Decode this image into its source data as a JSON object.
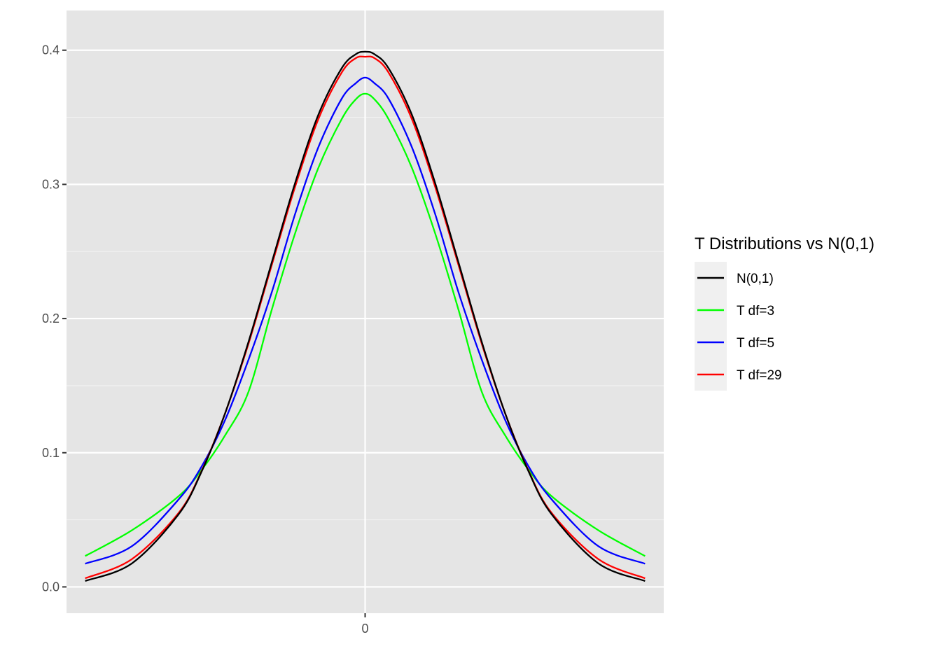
{
  "chart_data": {
    "type": "line",
    "title": "",
    "xlabel": "",
    "ylabel": "",
    "xlim": [
      -3.2,
      3.2
    ],
    "ylim": [
      -0.0196,
      0.4296
    ],
    "x_ticks": [
      0
    ],
    "x_tick_labels": [
      "0"
    ],
    "y_ticks": [
      0.0,
      0.1,
      0.2,
      0.3,
      0.4
    ],
    "y_tick_labels": [
      "0.0",
      "0.1",
      "0.2",
      "0.3",
      "0.4"
    ],
    "grid": true,
    "background": "#e5e5e5",
    "legend": {
      "title": "T Distributions vs N(0,1)",
      "placement": "right"
    },
    "x": [
      -3.0,
      -2.5,
      -2.0,
      -1.75,
      -1.5,
      -1.25,
      -1.0,
      -0.75,
      -0.5,
      -0.25,
      -0.1,
      0.0,
      0.1,
      0.25,
      0.5,
      0.75,
      1.0,
      1.25,
      1.5,
      1.75,
      2.0,
      2.5,
      3.0
    ],
    "series": [
      {
        "name": "N(0,1)",
        "color": "#000000",
        "values": [
          0.0044,
          0.0175,
          0.054,
          0.0863,
          0.1295,
          0.1826,
          0.242,
          0.3011,
          0.3521,
          0.3867,
          0.397,
          0.3989,
          0.397,
          0.3867,
          0.3521,
          0.3011,
          0.242,
          0.1826,
          0.1295,
          0.0863,
          0.054,
          0.0175,
          0.0044
        ]
      },
      {
        "name": "T df=3",
        "color": "#00ff00",
        "values": [
          0.023,
          0.0422,
          0.0675,
          0.0874,
          0.113,
          0.1454,
          0.2067,
          0.2636,
          0.3125,
          0.3488,
          0.3634,
          0.3676,
          0.3634,
          0.3488,
          0.3125,
          0.2636,
          0.2067,
          0.1454,
          0.113,
          0.0874,
          0.0675,
          0.0422,
          0.023
        ]
      },
      {
        "name": "T df=5",
        "color": "#0000ff",
        "values": [
          0.0173,
          0.0303,
          0.0651,
          0.09,
          0.1245,
          0.1693,
          0.2197,
          0.278,
          0.3279,
          0.364,
          0.3754,
          0.3796,
          0.3754,
          0.364,
          0.3279,
          0.278,
          0.2197,
          0.1693,
          0.1245,
          0.09,
          0.0651,
          0.0303,
          0.0173
        ]
      },
      {
        "name": "T df=29",
        "color": "#ff0000",
        "values": [
          0.0064,
          0.0207,
          0.055,
          0.0868,
          0.1295,
          0.1812,
          0.24,
          0.2983,
          0.3488,
          0.3835,
          0.3941,
          0.3951,
          0.3941,
          0.3835,
          0.3488,
          0.2983,
          0.24,
          0.1812,
          0.1295,
          0.0868,
          0.055,
          0.0207,
          0.0064
        ]
      }
    ]
  }
}
